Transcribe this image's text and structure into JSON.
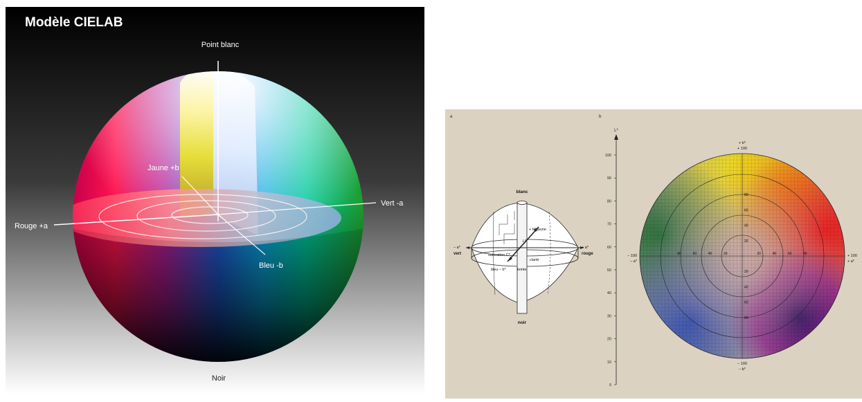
{
  "left": {
    "title": "Modèle CIELAB",
    "labels": {
      "top": "Point blanc",
      "yellow": "Jaune +b",
      "green": "Vert -a",
      "red": "Rouge +a",
      "blue": "Bleu -b",
      "bottom": "Noir"
    }
  },
  "right": {
    "panel_a": "a",
    "panel_b": "b",
    "diagram": {
      "top": "blanc",
      "bottom": "noir",
      "left_axis": "– a*",
      "left_name": "vert",
      "right_axis": "+ a*",
      "right_name": "rouge",
      "yellow": "+ b*  jaune",
      "lightness": "L*",
      "saturation": "saturation C*",
      "clarity": "clarté",
      "blue": "bleu – b*",
      "hue": "teinte"
    },
    "axis": {
      "label": "L*",
      "ticks": [
        "0",
        "10",
        "20",
        "30",
        "40",
        "50",
        "60",
        "70",
        "80",
        "90",
        "100"
      ]
    },
    "wheel": {
      "top_value": "+ 100",
      "top_label": "+ b*",
      "bottom_value": "– 100",
      "bottom_label": "– b*",
      "left_value": "– 100",
      "left_label": "– a*",
      "right_value": "+ 100",
      "right_label": "+ a*",
      "h_ticks": [
        "80",
        "60",
        "40",
        "20",
        "20",
        "40",
        "60",
        "80"
      ],
      "v_ticks": [
        "80",
        "60",
        "40",
        "20",
        "20",
        "40",
        "60",
        "80"
      ]
    }
  }
}
